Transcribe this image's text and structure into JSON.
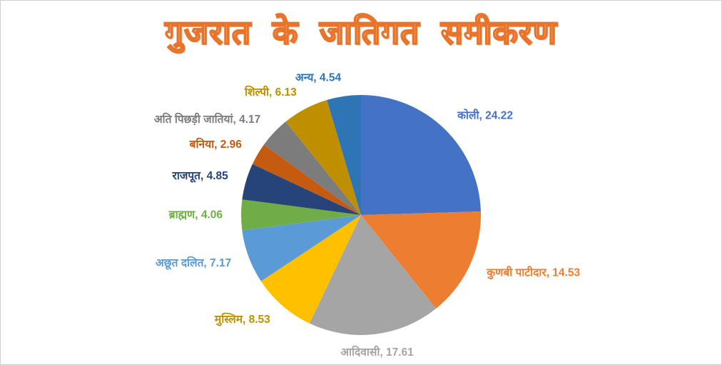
{
  "page": {
    "background_color": "#ffffff",
    "frame_border_color": "#cfcfcf"
  },
  "title": {
    "text": "गुजरात के जातिगत समीकरण",
    "fill_color": "#ffffff",
    "outline_color": "#e8742b"
  },
  "chart_data": {
    "type": "pie",
    "title": "गुजरात के जातिगत समीकरण",
    "legend_position": "none",
    "label_style": "outside, format: category, value",
    "start_angle_deg": 0,
    "direction": "clockwise",
    "values_total": 98.77,
    "slices": [
      {
        "label": "कोली",
        "value": 24.22,
        "color": "#4472C4"
      },
      {
        "label": "कुणबी पाटीदार",
        "value": 14.53,
        "color": "#ED7D31"
      },
      {
        "label": "आदिवासी",
        "value": 17.61,
        "color": "#A5A5A5"
      },
      {
        "label": "मुस्लिम",
        "value": 8.53,
        "color": "#FFC000",
        "label_color": "#BF9000"
      },
      {
        "label": "अछूत दलित",
        "value": 7.17,
        "color": "#5B9BD5"
      },
      {
        "label": "ब्राह्मण",
        "value": 4.06,
        "color": "#70AD47"
      },
      {
        "label": "राजपूत",
        "value": 4.85,
        "color": "#264478"
      },
      {
        "label": "बनिया",
        "value": 2.96,
        "color": "#C55A11"
      },
      {
        "label": "अति पिछड़ी जातियां",
        "value": 4.17,
        "color": "#7C7C7C"
      },
      {
        "label": "शिल्पी",
        "value": 6.13,
        "color": "#BF8F00"
      },
      {
        "label": "अन्य",
        "value": 4.54,
        "color": "#2E75B6"
      }
    ]
  }
}
